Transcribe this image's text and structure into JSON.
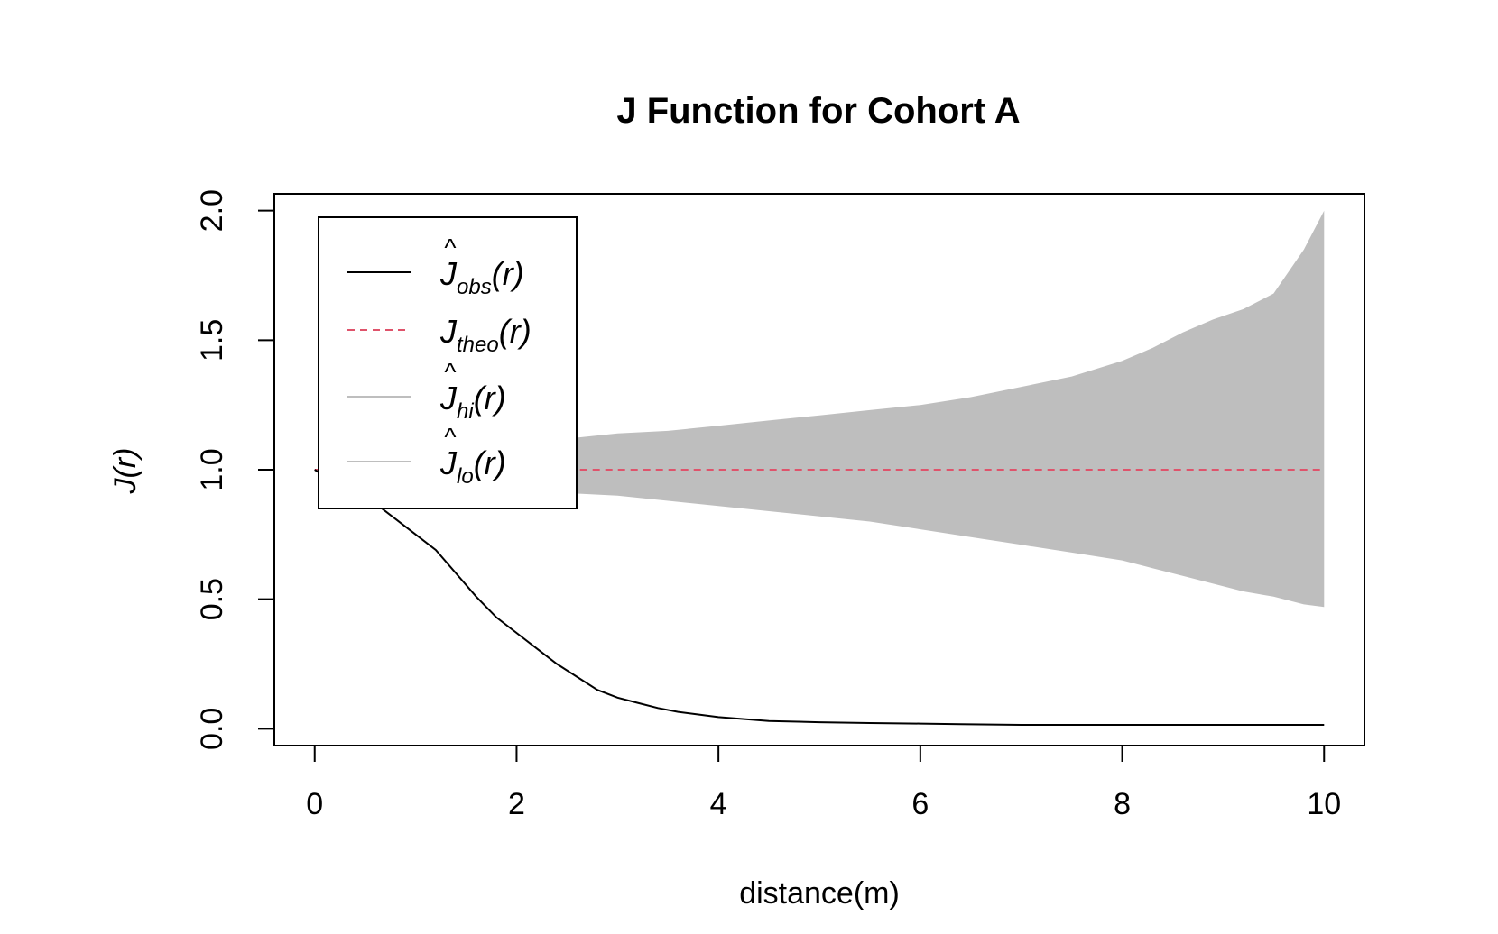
{
  "chart_data": {
    "type": "line",
    "title": "J Function for Cohort A",
    "xlabel": "distance(m)",
    "ylabel": "J(r)",
    "xlim": [
      -0.4,
      10.4
    ],
    "ylim": [
      -0.065,
      2.065
    ],
    "xticks": [
      "0",
      "2",
      "4",
      "6",
      "8",
      "10"
    ],
    "yticks": [
      "0.0",
      "0.5",
      "1.0",
      "1.5",
      "2.0"
    ],
    "grid": false,
    "legend_position": "top-left",
    "legend": [
      {
        "base": "J",
        "hat": true,
        "sub": "obs",
        "arg": "(r)",
        "color": "#000000",
        "style": "solid"
      },
      {
        "base": "J",
        "hat": false,
        "sub": "theo",
        "arg": "(r)",
        "color": "#DF536B",
        "style": "dashed"
      },
      {
        "base": "J",
        "hat": true,
        "sub": "hi",
        "arg": "(r)",
        "color": "#BEBEBE",
        "style": "solid"
      },
      {
        "base": "J",
        "hat": true,
        "sub": "lo",
        "arg": "(r)",
        "color": "#BEBEBE",
        "style": "solid"
      }
    ],
    "series": [
      {
        "name": "obs",
        "x": [
          0,
          0.2,
          0.4,
          0.6,
          0.8,
          1.0,
          1.2,
          1.4,
          1.6,
          1.8,
          2.0,
          2.2,
          2.4,
          2.6,
          2.8,
          3.0,
          3.2,
          3.4,
          3.6,
          3.8,
          4.0,
          4.5,
          5.0,
          5.5,
          6.0,
          6.4,
          7.0,
          8.0,
          9.0,
          10.0
        ],
        "y": [
          1.0,
          0.95,
          0.92,
          0.87,
          0.81,
          0.75,
          0.69,
          0.6,
          0.51,
          0.43,
          0.37,
          0.31,
          0.25,
          0.2,
          0.15,
          0.12,
          0.1,
          0.08,
          0.065,
          0.055,
          0.045,
          0.03,
          0.025,
          0.022,
          0.02,
          0.018,
          0.015,
          0.015,
          0.015,
          0.015
        ]
      },
      {
        "name": "theo",
        "x": [
          0,
          10
        ],
        "y": [
          1.0,
          1.0
        ]
      },
      {
        "name": "hi",
        "x": [
          0,
          0.5,
          1.0,
          1.5,
          2.0,
          2.5,
          3.0,
          3.5,
          4.0,
          4.5,
          5.0,
          5.5,
          6.0,
          6.5,
          7.0,
          7.5,
          8.0,
          8.3,
          8.6,
          8.9,
          9.2,
          9.5,
          9.8,
          10.0
        ],
        "y": [
          1.0,
          1.02,
          1.05,
          1.08,
          1.1,
          1.12,
          1.14,
          1.15,
          1.17,
          1.19,
          1.21,
          1.23,
          1.25,
          1.28,
          1.32,
          1.36,
          1.42,
          1.47,
          1.53,
          1.58,
          1.62,
          1.68,
          1.85,
          2.0
        ]
      },
      {
        "name": "lo",
        "x": [
          0,
          0.5,
          1.0,
          1.5,
          2.0,
          2.5,
          3.0,
          3.5,
          4.0,
          4.5,
          5.0,
          5.5,
          6.0,
          6.5,
          7.0,
          7.5,
          8.0,
          8.3,
          8.6,
          8.9,
          9.2,
          9.5,
          9.8,
          10.0
        ],
        "y": [
          1.0,
          0.98,
          0.96,
          0.94,
          0.93,
          0.91,
          0.9,
          0.88,
          0.86,
          0.84,
          0.82,
          0.8,
          0.77,
          0.74,
          0.71,
          0.68,
          0.65,
          0.62,
          0.59,
          0.56,
          0.53,
          0.51,
          0.48,
          0.47
        ]
      }
    ]
  }
}
